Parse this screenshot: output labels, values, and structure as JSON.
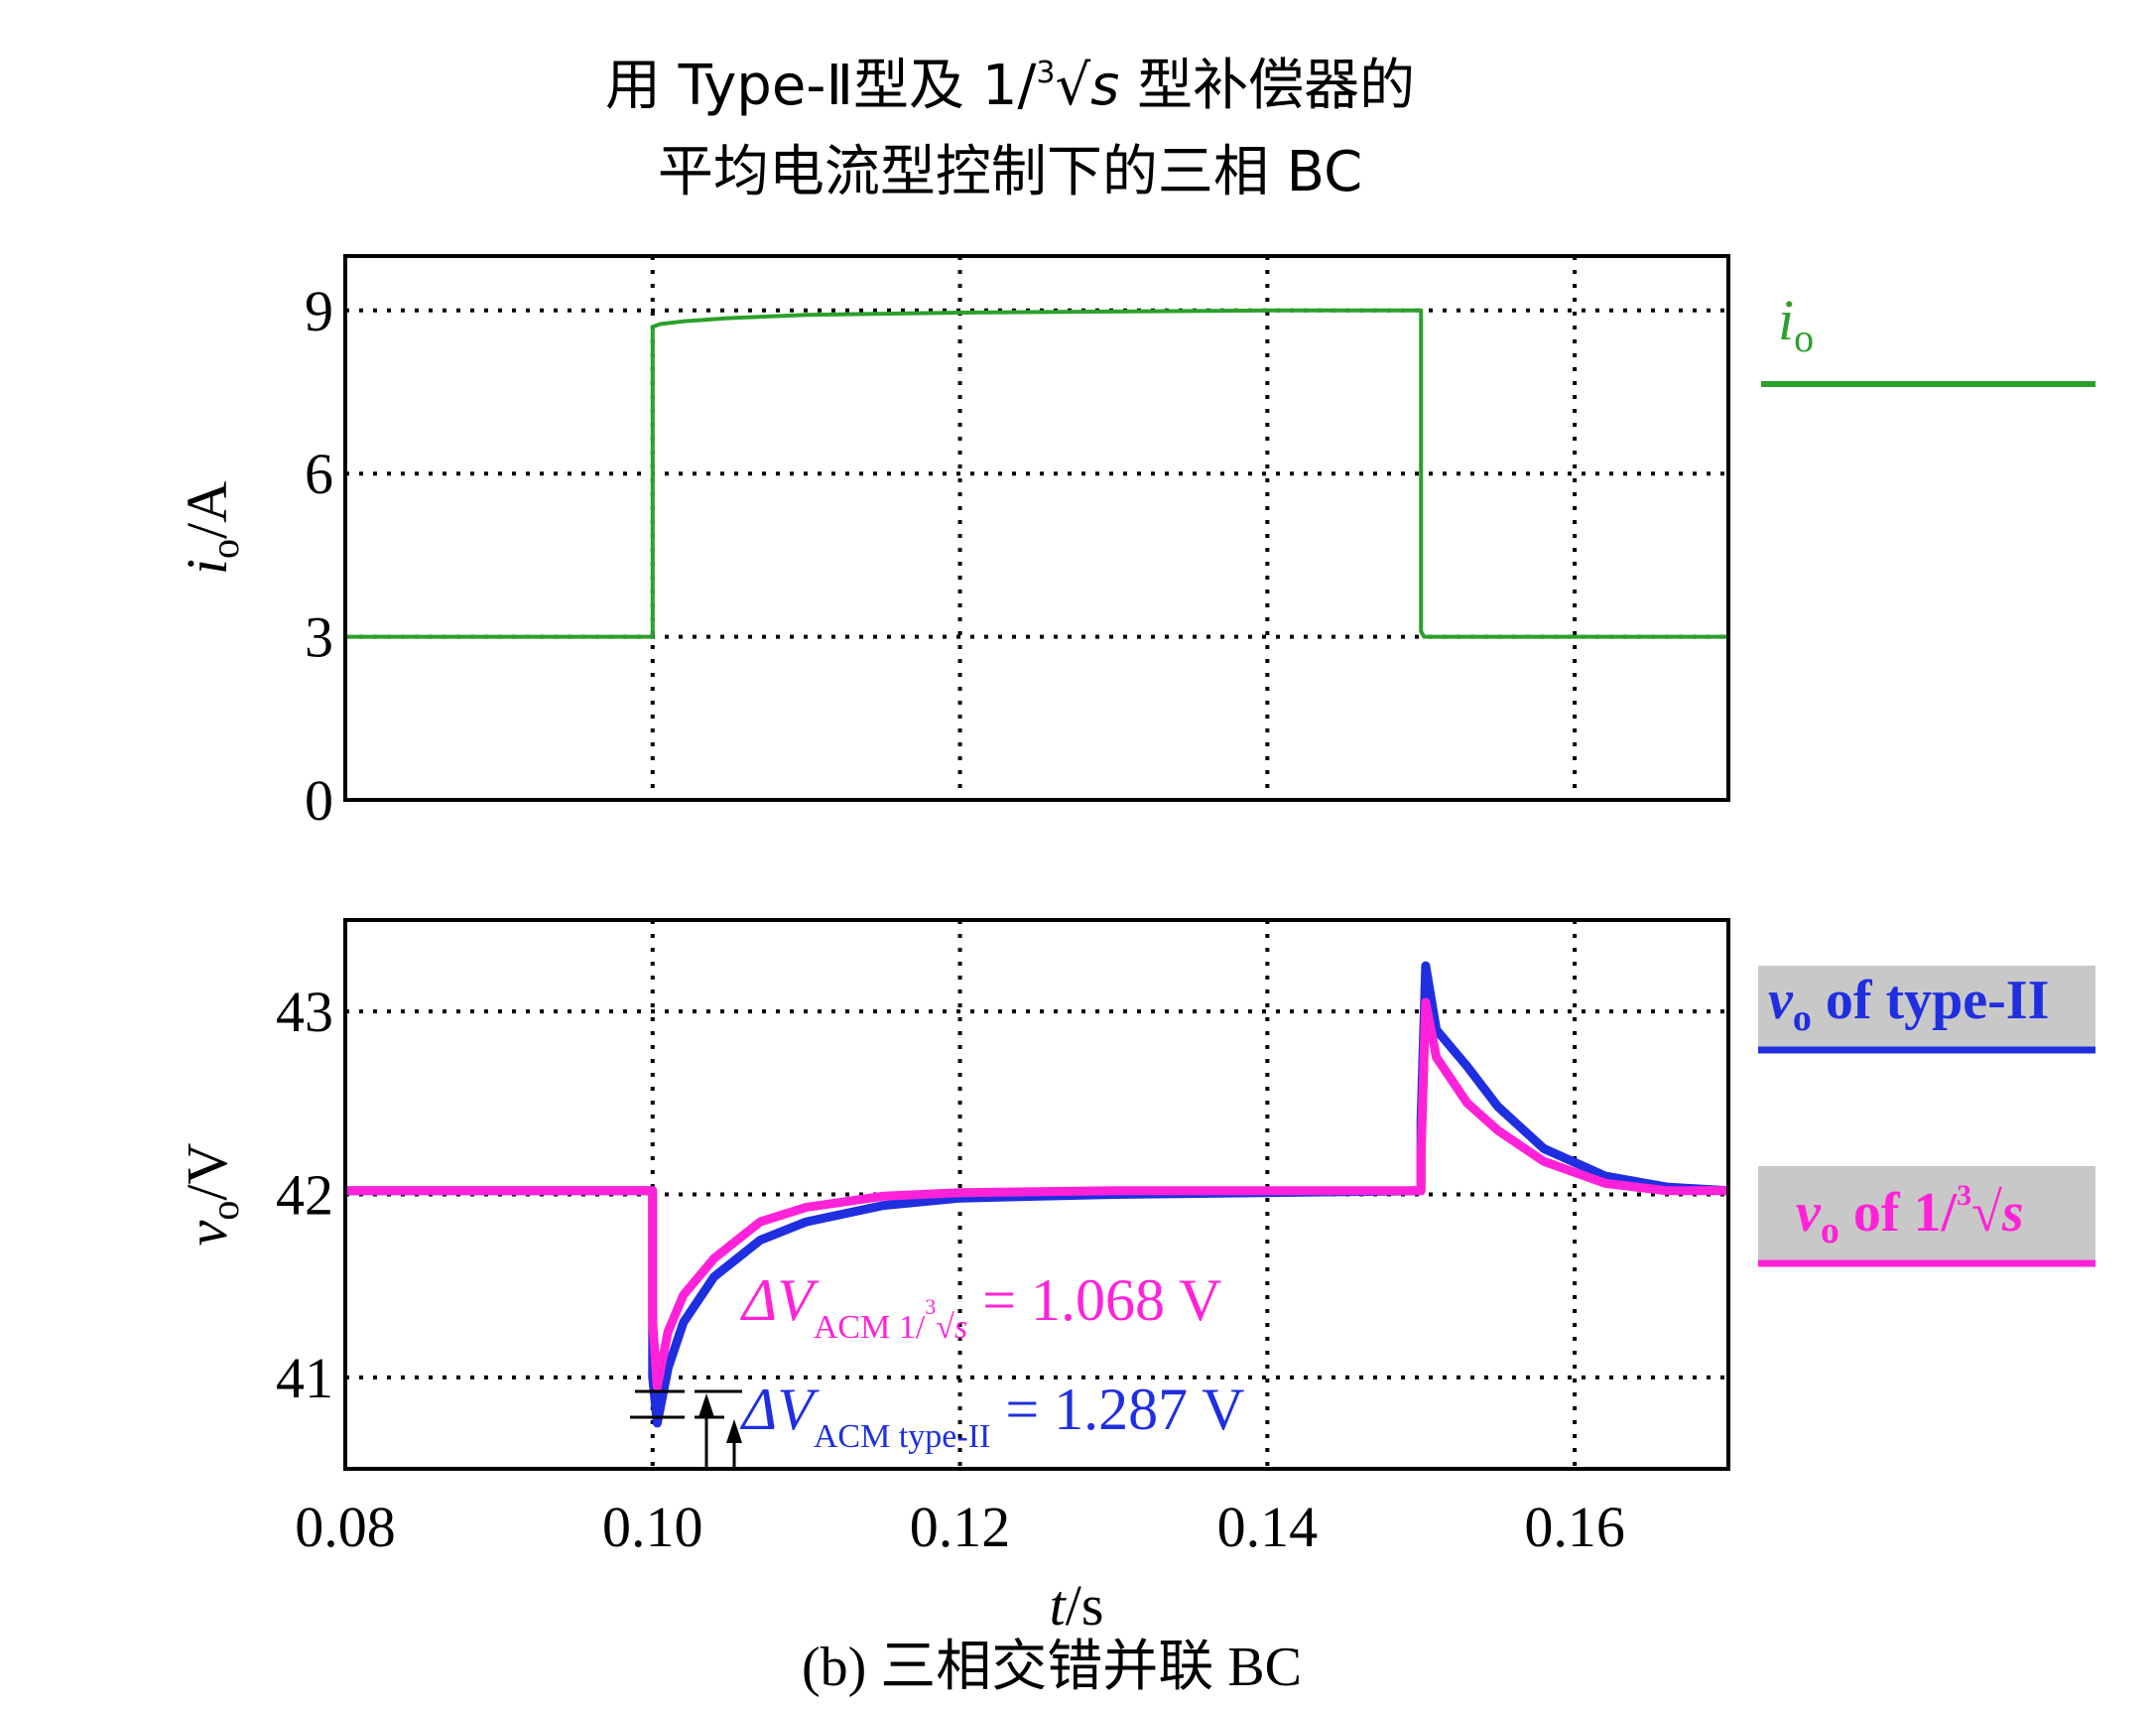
{
  "title": {
    "line1_pre": "用 Type-Ⅱ型及 1/",
    "line1_root_index": "3",
    "line1_root_var": "s",
    "line1_post": " 型补偿器的",
    "line2": "平均电流型控制下的三相 BC"
  },
  "caption": "(b) 三相交错并联 BC",
  "colors": {
    "green": "#2ca02c",
    "blue": "#1f2fe0",
    "magenta": "#ff22d8",
    "grid": "#000000",
    "legend_bg": "#c8c8c8"
  },
  "chart_data": [
    {
      "type": "line",
      "ylabel_var": "i",
      "ylabel_sub": "o",
      "ylabel_unit": "/A",
      "xlim": [
        0.08,
        0.17
      ],
      "ylim": [
        0,
        10
      ],
      "xticks": [
        0.1,
        0.12,
        0.14,
        0.16
      ],
      "yticks": [
        0,
        3,
        6,
        9
      ],
      "ytick_labels": [
        "0",
        "3",
        "6",
        "9"
      ],
      "grid": true,
      "legend_position": "right",
      "series": [
        {
          "name_var": "i",
          "name_sub": "o",
          "color": "#2ca02c",
          "points": [
            [
              0.08,
              3.0
            ],
            [
              0.1,
              3.0
            ],
            [
              0.1,
              8.7
            ],
            [
              0.1005,
              8.75
            ],
            [
              0.102,
              8.8
            ],
            [
              0.105,
              8.86
            ],
            [
              0.11,
              8.92
            ],
            [
              0.12,
              8.96
            ],
            [
              0.13,
              8.98
            ],
            [
              0.14,
              9.0
            ],
            [
              0.15,
              9.0
            ],
            [
              0.15,
              3.1
            ],
            [
              0.1502,
              3.0
            ],
            [
              0.17,
              3.0
            ]
          ]
        }
      ]
    },
    {
      "type": "line",
      "ylabel_var": "v",
      "ylabel_sub": "o",
      "ylabel_unit": "/V",
      "xlim": [
        0.08,
        0.17
      ],
      "ylim": [
        40.5,
        43.5
      ],
      "xticks": [
        0.08,
        0.1,
        0.12,
        0.14,
        0.16
      ],
      "xtick_labels": [
        "0.08",
        "0.10",
        "0.12",
        "0.14",
        "0.16"
      ],
      "yticks": [
        41,
        42,
        43
      ],
      "ytick_labels": [
        "41",
        "42",
        "43"
      ],
      "xlabel_var": "t",
      "xlabel_unit": "/s",
      "grid": true,
      "legend_position": "right",
      "series": [
        {
          "name_var": "v",
          "name_sub": "o",
          "name_text": " of type-II",
          "color": "#1f2fe0",
          "points": [
            [
              0.08,
              42.02
            ],
            [
              0.1,
              42.02
            ],
            [
              0.1,
              41.0
            ],
            [
              0.1003,
              40.75
            ],
            [
              0.101,
              41.05
            ],
            [
              0.102,
              41.3
            ],
            [
              0.104,
              41.55
            ],
            [
              0.107,
              41.75
            ],
            [
              0.11,
              41.85
            ],
            [
              0.115,
              41.94
            ],
            [
              0.12,
              41.98
            ],
            [
              0.13,
              42.0
            ],
            [
              0.15,
              42.02
            ],
            [
              0.15,
              42.4
            ],
            [
              0.1503,
              43.25
            ],
            [
              0.151,
              42.9
            ],
            [
              0.153,
              42.7
            ],
            [
              0.155,
              42.48
            ],
            [
              0.158,
              42.25
            ],
            [
              0.162,
              42.1
            ],
            [
              0.166,
              42.04
            ],
            [
              0.17,
              42.02
            ]
          ]
        },
        {
          "name_var": "v",
          "name_sub": "o",
          "name_text": " of 1/",
          "name_root_index": "3",
          "name_root_var": "s",
          "color": "#ff22d8",
          "points": [
            [
              0.08,
              42.02
            ],
            [
              0.1,
              42.02
            ],
            [
              0.1,
              41.3
            ],
            [
              0.1003,
              40.95
            ],
            [
              0.101,
              41.25
            ],
            [
              0.102,
              41.45
            ],
            [
              0.104,
              41.65
            ],
            [
              0.107,
              41.85
            ],
            [
              0.11,
              41.93
            ],
            [
              0.115,
              41.99
            ],
            [
              0.12,
              42.01
            ],
            [
              0.13,
              42.02
            ],
            [
              0.15,
              42.02
            ],
            [
              0.15,
              42.2
            ],
            [
              0.1503,
              43.05
            ],
            [
              0.151,
              42.75
            ],
            [
              0.153,
              42.5
            ],
            [
              0.155,
              42.35
            ],
            [
              0.158,
              42.18
            ],
            [
              0.162,
              42.06
            ],
            [
              0.166,
              42.02
            ],
            [
              0.17,
              42.02
            ]
          ]
        }
      ],
      "annotations": [
        {
          "prefix": "ΔV",
          "sub": "ACM 1/",
          "sub_root_index": "3",
          "sub_root_var": "s",
          "text": " = 1.068 V",
          "color": "#ff22d8"
        },
        {
          "prefix": "ΔV",
          "sub": "ACM type-II",
          "text": " = 1.287 V",
          "color": "#1f2fe0"
        }
      ]
    }
  ]
}
